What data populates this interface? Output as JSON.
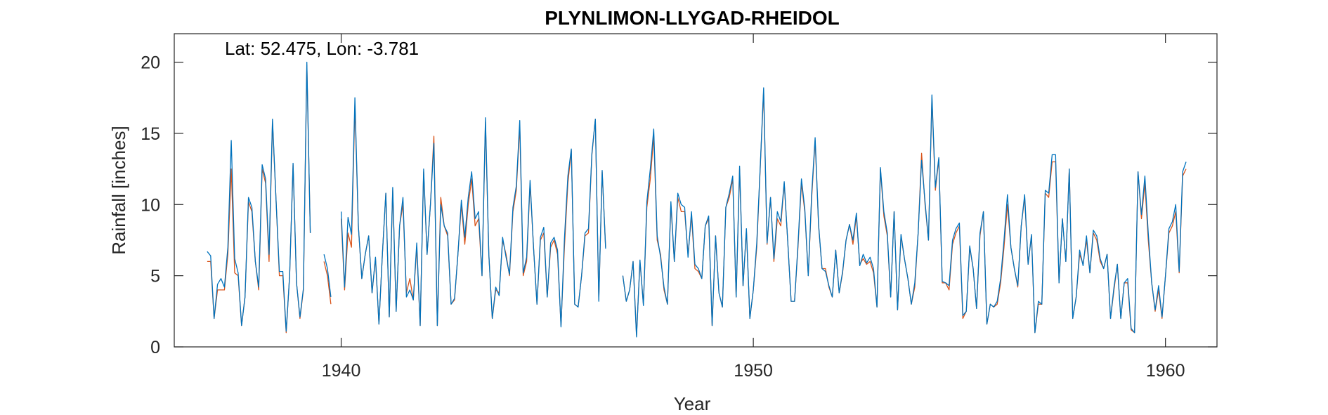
{
  "chart_data": {
    "type": "line",
    "title": "PLYNLIMON-LLYGAD-RHEIDOL",
    "annotation": "Lat: 52.475, Lon: -3.781",
    "xlabel": "Year",
    "ylabel": "Rainfall [inches]",
    "xlim": [
      1935.95,
      1961.25
    ],
    "ylim": [
      0,
      22
    ],
    "xticks": [
      1940,
      1950,
      1960
    ],
    "yticks": [
      0,
      5,
      10,
      15,
      20
    ],
    "grid": false,
    "series": [
      {
        "color": "#D95319",
        "start": 1936.75,
        "step": 0.0833333,
        "values": [
          6.0,
          6.0,
          2.0,
          4.0,
          4.0,
          4.0,
          6.5,
          12.5,
          5.2,
          5.0,
          1.5,
          3.5,
          10.2,
          9.5,
          6.0,
          4.0,
          12.5,
          11.5,
          6.0,
          15.8,
          10.5,
          5.0,
          5.0,
          1.0,
          5.0,
          12.8,
          4.5,
          2.0,
          4.0,
          19.8,
          8.0,
          null,
          null,
          null,
          6.0,
          5.0,
          3.0,
          null,
          null,
          9.0,
          4.0,
          8.0,
          7.0,
          17.0,
          8.5,
          4.8,
          6.5,
          7.8,
          3.8,
          6.2,
          1.6,
          6.5,
          10.8,
          2.1,
          11.0,
          2.5,
          8.5,
          10.0,
          3.8,
          4.8,
          3.3,
          7.0,
          1.5,
          12.3,
          6.5,
          10.0,
          14.8,
          1.5,
          10.5,
          8.5,
          7.8,
          3.0,
          3.3,
          6.5,
          10.0,
          7.2,
          10.0,
          11.8,
          8.5,
          9.0,
          5.0,
          15.8,
          6.5,
          2.0,
          4.0,
          3.8,
          7.5,
          6.5,
          5.0,
          9.5,
          11.0,
          15.5,
          5.0,
          6.0,
          11.5,
          7.0,
          3.0,
          7.5,
          8.0,
          3.5,
          7.0,
          7.5,
          6.5,
          1.5,
          7.0,
          11.5,
          13.8,
          3.0,
          2.8,
          5.0,
          7.8,
          8.0,
          13.5,
          16.0,
          3.3,
          12.3,
          7.0,
          null,
          null,
          null,
          null,
          5.0,
          3.2,
          4.0,
          6.0,
          0.8,
          6.0,
          3.0,
          9.8,
          11.8,
          14.8,
          7.5,
          6.5,
          4.0,
          3.0,
          10.0,
          6.0,
          10.5,
          9.5,
          9.5,
          6.5,
          9.2,
          5.5,
          5.3,
          4.8,
          8.5,
          9.0,
          1.5,
          7.8,
          3.8,
          2.8,
          9.8,
          10.5,
          11.8,
          3.5,
          12.5,
          4.3,
          8.2,
          2.0,
          4.0,
          7.0,
          12.5,
          18.0,
          7.2,
          10.5,
          6.0,
          9.0,
          8.5,
          11.5,
          7.5,
          3.2,
          3.2,
          7.0,
          11.5,
          9.5,
          5.0,
          10.5,
          14.5,
          8.5,
          5.5,
          5.5,
          4.2,
          3.5,
          6.8,
          3.8,
          5.2,
          7.5,
          8.6,
          7.2,
          9.2,
          5.8,
          6.2,
          5.8,
          6.0,
          5.2,
          2.8,
          12.5,
          9.2,
          7.8,
          3.5,
          9.5,
          2.6,
          7.8,
          6.2,
          4.8,
          3.0,
          4.2,
          8.0,
          13.6,
          10.0,
          7.5,
          17.5,
          11.0,
          13.2,
          4.5,
          4.5,
          4.0,
          7.2,
          8.0,
          8.5,
          2.0,
          2.5,
          7.0,
          5.5,
          2.7,
          7.8,
          9.5,
          1.6,
          3.0,
          2.8,
          3.0,
          4.5,
          7.0,
          10.0,
          7.0,
          5.5,
          4.2,
          8.5,
          10.5,
          5.8,
          7.8,
          1.0,
          3.0,
          3.0,
          10.8,
          10.5,
          13.0,
          13.0,
          4.5,
          9.0,
          6.0,
          12.5,
          2.0,
          3.5,
          6.5,
          5.8,
          7.5,
          5.2,
          8.0,
          7.5,
          6.0,
          5.5,
          6.5,
          2.0,
          4.0,
          5.8,
          2.0,
          4.5,
          4.5,
          1.2,
          1.0,
          12.3,
          9.0,
          11.5,
          7.5,
          4.5,
          2.5,
          4.0,
          2.0,
          5.0,
          8.0,
          8.5,
          9.5,
          5.2,
          12.0,
          12.5
        ]
      },
      {
        "color": "#0072BD",
        "start": 1936.75,
        "step": 0.0833333,
        "values": [
          6.7,
          6.4,
          2.0,
          4.4,
          4.8,
          4.2,
          7.0,
          14.5,
          6.2,
          5.2,
          1.5,
          3.5,
          10.5,
          9.8,
          6.0,
          4.2,
          12.8,
          11.8,
          6.5,
          16.0,
          10.5,
          5.3,
          5.3,
          1.1,
          5.0,
          12.9,
          4.5,
          2.1,
          4.1,
          20.0,
          8.0,
          null,
          null,
          null,
          6.5,
          5.5,
          3.5,
          null,
          null,
          9.5,
          4.2,
          9.1,
          7.9,
          17.5,
          8.5,
          4.8,
          6.5,
          7.8,
          3.8,
          6.3,
          1.6,
          6.5,
          10.8,
          2.1,
          11.2,
          2.5,
          8.5,
          10.5,
          3.5,
          4.0,
          3.3,
          7.3,
          1.5,
          12.5,
          6.5,
          10.0,
          14.3,
          1.5,
          10.0,
          8.5,
          8.0,
          3.0,
          3.4,
          6.5,
          10.3,
          7.7,
          10.5,
          12.3,
          9.0,
          9.5,
          5.0,
          16.1,
          6.5,
          2.0,
          4.2,
          3.6,
          7.7,
          6.3,
          5.1,
          9.8,
          11.3,
          15.9,
          5.2,
          6.3,
          11.7,
          7.0,
          3.0,
          7.7,
          8.4,
          3.5,
          7.3,
          7.7,
          6.8,
          1.4,
          7.6,
          12.0,
          13.9,
          3.0,
          2.8,
          5.0,
          8.0,
          8.3,
          13.6,
          16.0,
          3.2,
          12.4,
          6.9,
          null,
          null,
          null,
          null,
          5.0,
          3.2,
          4.0,
          6.0,
          0.7,
          6.1,
          2.9,
          10.2,
          12.5,
          15.3,
          7.8,
          6.3,
          4.2,
          3.0,
          10.2,
          6.0,
          10.8,
          10.0,
          9.8,
          6.3,
          9.5,
          5.8,
          5.5,
          4.8,
          8.5,
          9.2,
          1.5,
          7.8,
          3.8,
          2.8,
          9.8,
          10.8,
          12.0,
          3.5,
          12.7,
          4.3,
          8.3,
          2.0,
          4.0,
          7.3,
          12.6,
          18.2,
          7.3,
          10.5,
          6.2,
          9.5,
          8.8,
          11.6,
          7.5,
          3.2,
          3.2,
          7.2,
          11.8,
          9.7,
          5.0,
          10.8,
          14.7,
          8.6,
          5.5,
          5.3,
          4.3,
          3.5,
          6.8,
          3.8,
          5.3,
          7.5,
          8.6,
          7.5,
          9.4,
          5.7,
          6.5,
          5.9,
          6.3,
          5.5,
          2.8,
          12.6,
          9.5,
          8.0,
          3.5,
          9.5,
          2.6,
          7.9,
          6.2,
          4.8,
          3.0,
          4.5,
          8.0,
          13.1,
          10.2,
          7.5,
          17.7,
          11.2,
          13.3,
          4.6,
          4.5,
          4.3,
          7.5,
          8.3,
          8.7,
          2.2,
          2.5,
          7.1,
          5.5,
          2.7,
          8.0,
          9.5,
          1.6,
          3.0,
          2.8,
          3.2,
          4.8,
          7.5,
          10.7,
          7.0,
          5.5,
          4.3,
          8.5,
          10.7,
          5.8,
          7.9,
          1.0,
          3.2,
          3.0,
          11.0,
          10.8,
          13.5,
          13.5,
          4.5,
          9.0,
          6.0,
          12.5,
          2.0,
          3.5,
          6.8,
          5.7,
          7.8,
          5.2,
          8.2,
          7.8,
          6.2,
          5.5,
          6.5,
          2.0,
          4.2,
          5.8,
          2.0,
          4.5,
          4.8,
          1.3,
          1.0,
          12.3,
          9.3,
          12.0,
          8.0,
          4.5,
          2.6,
          4.3,
          2.1,
          5.0,
          8.3,
          8.8,
          10.0,
          5.3,
          12.3,
          13.0
        ]
      }
    ]
  }
}
